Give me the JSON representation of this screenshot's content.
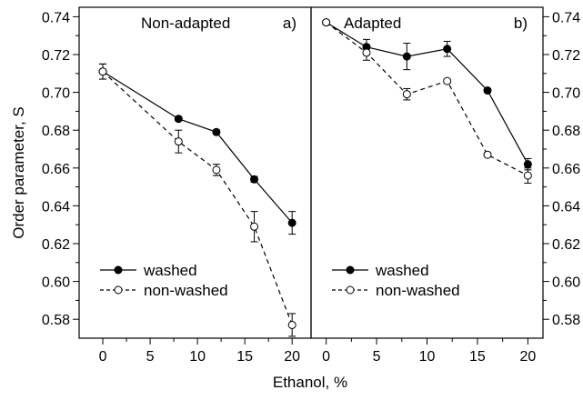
{
  "chart_data": {
    "type": "line",
    "xlabel": "Ethanol, %",
    "ylabel": "Order parameter, S",
    "ylim": [
      0.57,
      0.745
    ],
    "y_ticks": [
      0.58,
      0.6,
      0.62,
      0.64,
      0.66,
      0.68,
      0.7,
      0.72,
      0.74
    ],
    "y_tick_labels": [
      "0.58",
      "0.60",
      "0.62",
      "0.64",
      "0.66",
      "0.68",
      "0.70",
      "0.72",
      "0.74"
    ],
    "grid": false,
    "panels": [
      {
        "title": "Non-adapted",
        "letter": "a)",
        "xlim": [
          -2.5,
          22
        ],
        "x_ticks": [
          0,
          5,
          10,
          15,
          20
        ],
        "x_tick_labels": [
          "0",
          "5",
          "10",
          "15",
          "20"
        ],
        "legend_position": "bottom-left",
        "series": [
          {
            "name": "washed",
            "marker": "filled-circle",
            "line": "solid",
            "x": [
              0,
              8,
              12,
              16,
              20
            ],
            "y": [
              0.711,
              0.686,
              0.679,
              0.654,
              0.631
            ],
            "err": [
              0.004,
              0.001,
              0.001,
              0.0015,
              0.006
            ]
          },
          {
            "name": "non-washed",
            "marker": "open-circle",
            "line": "dashed",
            "x": [
              0,
              8,
              12,
              16,
              20
            ],
            "y": [
              0.711,
              0.674,
              0.659,
              0.629,
              0.577
            ],
            "err": [
              0.004,
              0.006,
              0.003,
              0.008,
              0.006
            ]
          }
        ]
      },
      {
        "title": "Adapted",
        "letter": "b)",
        "xlim": [
          -1.5,
          21.5
        ],
        "x_ticks": [
          0,
          5,
          10,
          15,
          20
        ],
        "x_tick_labels": [
          "0",
          "5",
          "10",
          "15",
          "20"
        ],
        "legend_position": "bottom-left",
        "series": [
          {
            "name": "washed",
            "marker": "filled-circle",
            "line": "solid",
            "x": [
              0,
              4,
              8,
              12,
              16,
              20
            ],
            "y": [
              0.737,
              0.724,
              0.719,
              0.723,
              0.701,
              0.662
            ],
            "err": [
              0.001,
              0.004,
              0.007,
              0.004,
              0.001,
              0.003
            ]
          },
          {
            "name": "non-washed",
            "marker": "open-circle",
            "line": "dashed",
            "x": [
              0,
              4,
              8,
              12,
              16,
              20
            ],
            "y": [
              0.737,
              0.721,
              0.699,
              0.706,
              0.667,
              0.656
            ],
            "err": [
              0.001,
              0.004,
              0.003,
              0.001,
              0.001,
              0.004
            ]
          }
        ]
      }
    ]
  }
}
